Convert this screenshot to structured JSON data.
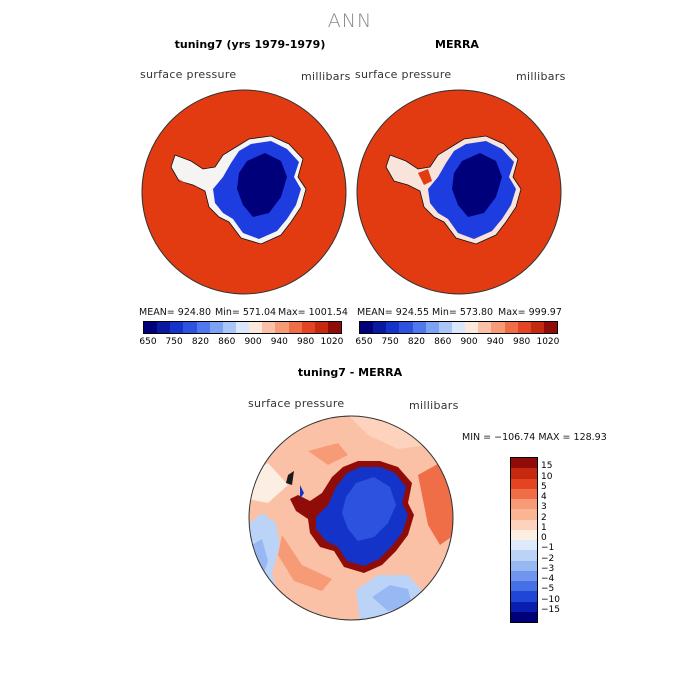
{
  "figure_title": "ANN",
  "panels": [
    {
      "title": "tuning7 (yrs 1979-1979)",
      "variable": "surface pressure",
      "units": "millibars",
      "mean": "MEAN= 924.80",
      "min": "Min= 571.04",
      "max": "Max= 1001.54"
    },
    {
      "title": "MERRA",
      "variable": "surface pressure",
      "units": "millibars",
      "mean": "MEAN= 924.55",
      "min": "Min= 573.80",
      "max": "Max= 999.97"
    }
  ],
  "diff_panel": {
    "title": "tuning7 - MERRA",
    "variable": "surface pressure",
    "units": "millibars",
    "minmax": "MIN = −106.74  MAX = 128.93"
  },
  "colorbar": {
    "colors": [
      "#00007a",
      "#0a1aa0",
      "#1433c8",
      "#2d52e0",
      "#4f78ee",
      "#7ca2f4",
      "#a9c6f8",
      "#dbe8fb",
      "#fde8dc",
      "#fbc1a6",
      "#f79b77",
      "#ef6e48",
      "#e44421",
      "#c52a10",
      "#8f0c08"
    ],
    "tick_labels": [
      "650",
      "750",
      "820",
      "860",
      "900",
      "940",
      "980",
      "1020"
    ]
  },
  "diff_colorbar": {
    "colors": [
      "#8f0c08",
      "#c52a10",
      "#e44421",
      "#ef6e48",
      "#f79b77",
      "#fbb592",
      "#fdd3bd",
      "#fdeee4",
      "#dceafb",
      "#bcd3f8",
      "#98b8f4",
      "#6f95ee",
      "#4670e6",
      "#1f46d6",
      "#0a1fb0",
      "#00007a"
    ],
    "tick_labels": [
      "15",
      "10",
      "5",
      "4",
      "3",
      "2",
      "1",
      "0",
      "−1",
      "−2",
      "−3",
      "−4",
      "−5",
      "−10",
      "−15"
    ]
  }
}
